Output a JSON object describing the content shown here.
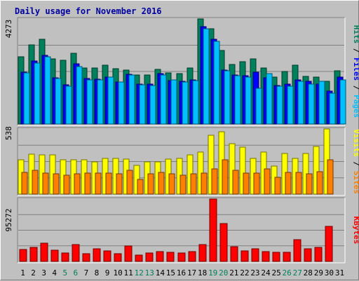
{
  "title": "Daily usage for November 2016",
  "chart_data": [
    {
      "type": "bar",
      "panel": "pages-files-hits",
      "ymax_label": "4273",
      "ylim": [
        0,
        4273
      ],
      "categories": [
        "1",
        "2",
        "3",
        "4",
        "5",
        "6",
        "7",
        "8",
        "9",
        "10",
        "11",
        "12",
        "13",
        "14",
        "15",
        "16",
        "17",
        "18",
        "19",
        "20",
        "21",
        "22",
        "23",
        "24",
        "25",
        "26",
        "27",
        "28",
        "29",
        "30",
        "31"
      ],
      "weekend_days": [
        "5",
        "6",
        "12",
        "13",
        "19",
        "20",
        "26",
        "27"
      ],
      "legend": [
        {
          "label": "Pages",
          "color": "#00c0ff"
        },
        {
          "label": "Files",
          "color": "#0000ff"
        },
        {
          "label": "Hits",
          "color": "#00805c"
        }
      ],
      "series": [
        {
          "name": "Hits",
          "color": "#00805c",
          "values": [
            2730,
            3210,
            3440,
            2640,
            2590,
            2890,
            2280,
            2280,
            2400,
            2250,
            2200,
            1980,
            1990,
            2230,
            2070,
            2040,
            2290,
            4260,
            3880,
            2980,
            2410,
            2540,
            2640,
            2280,
            1900,
            2150,
            2400,
            1930,
            1920,
            1730,
            2170
          ]
        },
        {
          "name": "Files",
          "color": "#0000ff",
          "values": [
            2100,
            2570,
            2800,
            1870,
            1600,
            2450,
            1850,
            1830,
            1900,
            1710,
            2020,
            1610,
            1610,
            2050,
            1760,
            1730,
            1790,
            3950,
            3440,
            2200,
            1990,
            1970,
            2100,
            1870,
            1580,
            1610,
            1790,
            1750,
            1620,
            1340,
            1910
          ]
        },
        {
          "name": "Pages",
          "color": "#00c0ff",
          "values": [
            2080,
            2470,
            2740,
            1840,
            1540,
            2350,
            1800,
            1800,
            1920,
            1700,
            2000,
            1590,
            1570,
            1990,
            1790,
            1700,
            1780,
            3860,
            3360,
            2170,
            1970,
            1900,
            1450,
            2040,
            1540,
            1530,
            1750,
            1610,
            1740,
            1260,
            1800
          ]
        }
      ]
    },
    {
      "type": "bar",
      "panel": "sites-visits",
      "ymax_label": "538",
      "ylim": [
        0,
        538
      ],
      "categories": [
        "1",
        "2",
        "3",
        "4",
        "5",
        "6",
        "7",
        "8",
        "9",
        "10",
        "11",
        "12",
        "13",
        "14",
        "15",
        "16",
        "17",
        "18",
        "19",
        "20",
        "21",
        "22",
        "23",
        "24",
        "25",
        "26",
        "27",
        "28",
        "29",
        "30",
        "31"
      ],
      "legend": [
        {
          "label": "Sites",
          "color": "#ff8000"
        },
        {
          "label": "Visits",
          "color": "#ffff00"
        }
      ],
      "series": [
        {
          "name": "Visits",
          "color": "#ffff00",
          "values": [
            285,
            327,
            323,
            323,
            282,
            282,
            282,
            266,
            296,
            296,
            287,
            239,
            268,
            268,
            287,
            296,
            323,
            345,
            487,
            513,
            415,
            388,
            296,
            345,
            229,
            336,
            296,
            336,
            391,
            557,
            0
          ]
        },
        {
          "name": "Sites",
          "color": "#ff8000",
          "values": [
            181,
            194,
            173,
            170,
            159,
            170,
            173,
            173,
            173,
            165,
            194,
            122,
            170,
            178,
            165,
            154,
            165,
            176,
            209,
            282,
            196,
            176,
            176,
            209,
            139,
            178,
            178,
            170,
            183,
            284,
            0
          ]
        }
      ]
    },
    {
      "type": "bar",
      "panel": "kbytes",
      "ymax_label": "95272",
      "ylim": [
        0,
        95272
      ],
      "categories": [
        "1",
        "2",
        "3",
        "4",
        "5",
        "6",
        "7",
        "8",
        "9",
        "10",
        "11",
        "12",
        "13",
        "14",
        "15",
        "16",
        "17",
        "18",
        "19",
        "20",
        "21",
        "22",
        "23",
        "24",
        "25",
        "26",
        "27",
        "28",
        "29",
        "30",
        "31"
      ],
      "legend": [
        {
          "label": "KBytes",
          "color": "#ff0000"
        }
      ],
      "series": [
        {
          "name": "KBytes",
          "color": "#ff0000",
          "values": [
            18500,
            21100,
            28000,
            16900,
            13200,
            26100,
            11600,
            19000,
            15900,
            12100,
            23700,
            9500,
            13200,
            15100,
            13500,
            13200,
            15000,
            26200,
            98600,
            57300,
            22900,
            16000,
            19000,
            15100,
            14400,
            14200,
            33400,
            19500,
            21000,
            54000,
            0
          ]
        }
      ]
    }
  ]
}
